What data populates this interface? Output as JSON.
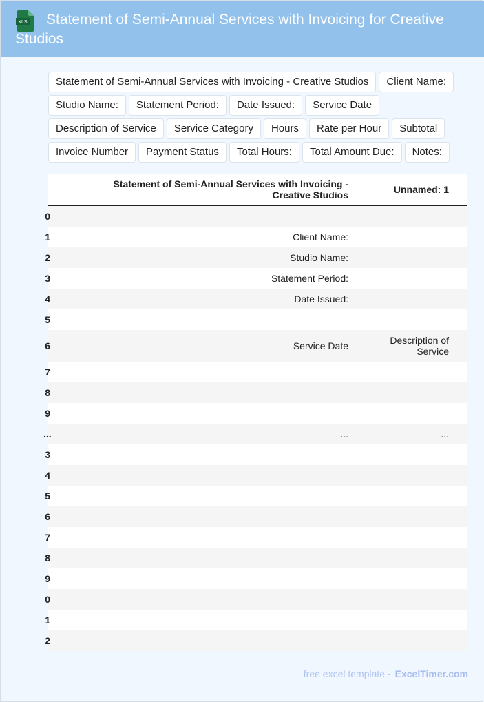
{
  "header": {
    "title": "Statement of Semi-Annual Services with Invoicing for Creative Studios",
    "icon": "xls-file-icon",
    "icon_label": "XLS",
    "bg_color": "#92c1ec"
  },
  "tags": [
    "Statement of Semi-Annual Services with Invoicing - Creative Studios",
    "Client Name:",
    "Studio Name:",
    "Statement Period:",
    "Date Issued:",
    "Service Date",
    "Description of Service",
    "Service Category",
    "Hours",
    "Rate per Hour",
    "Subtotal",
    "Invoice Number",
    "Payment Status",
    "Total Hours:",
    "Total Amount Due:",
    "Notes:"
  ],
  "table": {
    "columns": [
      "Statement of Semi-Annual Services with Invoicing - Creative Studios",
      "Unnamed: 1"
    ],
    "rows": [
      {
        "idx": "0",
        "c1": "",
        "c2": ""
      },
      {
        "idx": "1",
        "c1": "Client Name:",
        "c2": ""
      },
      {
        "idx": "2",
        "c1": "Studio Name:",
        "c2": ""
      },
      {
        "idx": "3",
        "c1": "Statement Period:",
        "c2": ""
      },
      {
        "idx": "4",
        "c1": "Date Issued:",
        "c2": ""
      },
      {
        "idx": "5",
        "c1": "",
        "c2": ""
      },
      {
        "idx": "6",
        "c1": "Service Date",
        "c2": "Description of Service"
      },
      {
        "idx": "7",
        "c1": "",
        "c2": ""
      },
      {
        "idx": "8",
        "c1": "",
        "c2": ""
      },
      {
        "idx": "9",
        "c1": "",
        "c2": ""
      },
      {
        "idx": "...",
        "c1": "...",
        "c2": "..."
      },
      {
        "idx": "3",
        "c1": "",
        "c2": ""
      },
      {
        "idx": "4",
        "c1": "",
        "c2": ""
      },
      {
        "idx": "5",
        "c1": "",
        "c2": ""
      },
      {
        "idx": "6",
        "c1": "",
        "c2": ""
      },
      {
        "idx": "7",
        "c1": "",
        "c2": ""
      },
      {
        "idx": "8",
        "c1": "",
        "c2": ""
      },
      {
        "idx": "9",
        "c1": "",
        "c2": ""
      },
      {
        "idx": "0",
        "c1": "",
        "c2": ""
      },
      {
        "idx": "1",
        "c1": "",
        "c2": ""
      },
      {
        "idx": "2",
        "c1": "",
        "c2": ""
      }
    ]
  },
  "footer": {
    "text": "free excel template -",
    "brand": "ExcelTimer.com"
  }
}
